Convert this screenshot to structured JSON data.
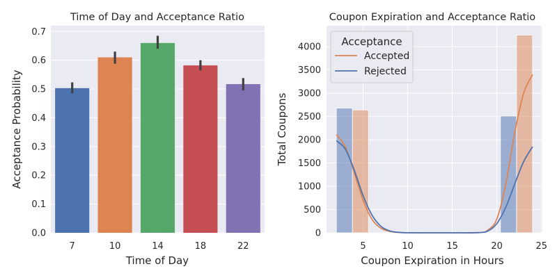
{
  "chart_data": [
    {
      "type": "bar",
      "title": "Time of Day and Acceptance Ratio",
      "xlabel": "Time of Day",
      "ylabel": "Acceptance Probability",
      "categories": [
        "7",
        "10",
        "14",
        "18",
        "22"
      ],
      "values": [
        0.503,
        0.61,
        0.66,
        0.582,
        0.517
      ],
      "error_bars": [
        [
          0.485,
          0.523
        ],
        [
          0.588,
          0.63
        ],
        [
          0.64,
          0.685
        ],
        [
          0.565,
          0.6
        ],
        [
          0.495,
          0.538
        ]
      ],
      "colors": [
        "#4c72b0",
        "#dd8452",
        "#55a868",
        "#c44e52",
        "#8172b3"
      ],
      "error_color": "#404040",
      "ylim": [
        0,
        0.72
      ],
      "yticks": [
        0.0,
        0.1,
        0.2,
        0.3,
        0.4,
        0.5,
        0.6,
        0.7
      ],
      "ytick_labels": [
        "0.0",
        "0.1",
        "0.2",
        "0.3",
        "0.4",
        "0.5",
        "0.6",
        "0.7"
      ],
      "grid": true
    },
    {
      "type": "bar",
      "subtype": "histogram_with_kde",
      "title": "Coupon Expiration and Acceptance Ratio",
      "xlabel": "Coupon Expiration in Hours",
      "ylabel": "Total Coupons",
      "xlim": [
        0.9,
        25.1
      ],
      "ylim": [
        0,
        4450
      ],
      "xticks": [
        5,
        10,
        15,
        20,
        25
      ],
      "yticks": [
        0,
        500,
        1000,
        1500,
        2000,
        2500,
        3000,
        3500,
        4000
      ],
      "legend": {
        "title": "Acceptance",
        "position": "upper-left"
      },
      "grid": true,
      "series": [
        {
          "name": "Accepted",
          "color": "#dd8452",
          "bars": [
            {
              "x0": 3.8,
              "x1": 5.6,
              "value": 2640
            },
            {
              "x0": 22.2,
              "x1": 24.0,
              "value": 4250
            }
          ],
          "kde": {
            "x": [
              2,
              3,
              4,
              5,
              6,
              7,
              8,
              9,
              10,
              12,
              15,
              18,
              19,
              20,
              21,
              22,
              23,
              24
            ],
            "y": [
              2110,
              1850,
              1300,
              700,
              290,
              100,
              30,
              8,
              2,
              0,
              0,
              5,
              60,
              300,
              1050,
              2150,
              3000,
              3400
            ]
          }
        },
        {
          "name": "Rejected",
          "color": "#4c72b0",
          "bars": [
            {
              "x0": 2.0,
              "x1": 3.8,
              "value": 2680
            },
            {
              "x0": 20.4,
              "x1": 22.2,
              "value": 2510
            }
          ],
          "kde": {
            "x": [
              2,
              3,
              4,
              5,
              6,
              7,
              8,
              9,
              10,
              12,
              15,
              18,
              19,
              20,
              21,
              22,
              23,
              24
            ],
            "y": [
              1980,
              1800,
              1350,
              800,
              380,
              140,
              40,
              10,
              2,
              0,
              0,
              5,
              40,
              200,
              550,
              1050,
              1530,
              1850
            ]
          }
        }
      ]
    }
  ]
}
